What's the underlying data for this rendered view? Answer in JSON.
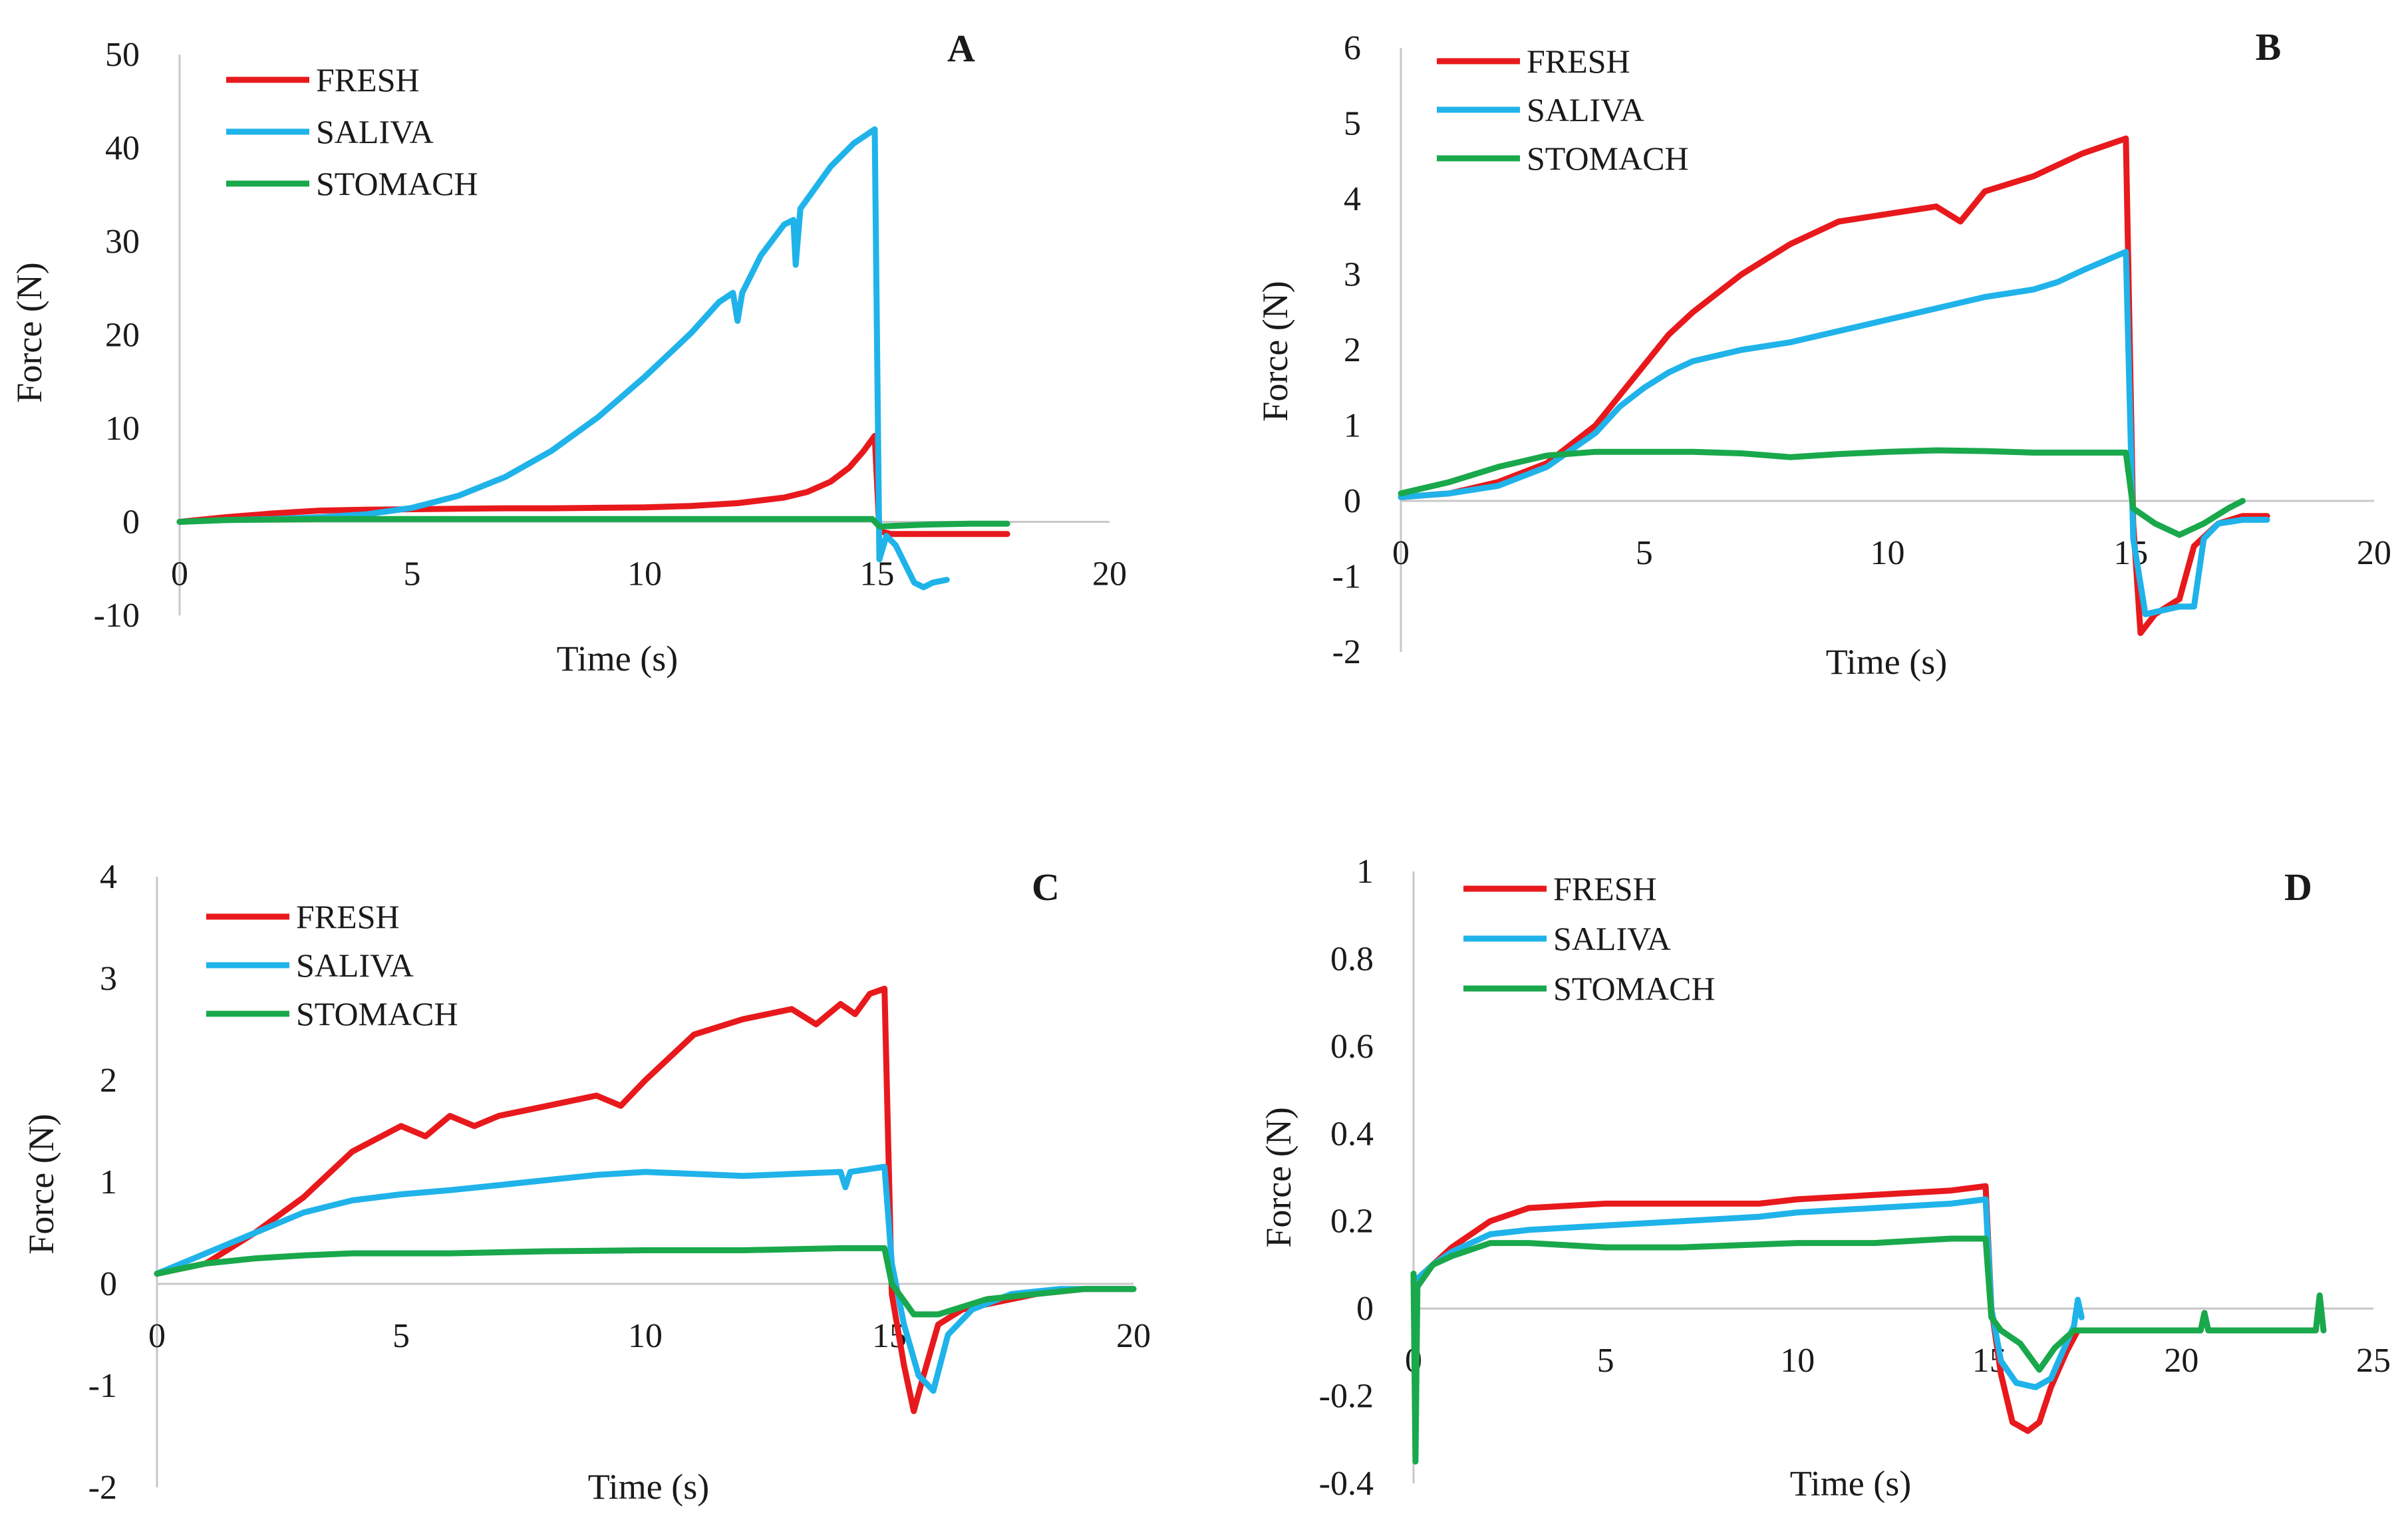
{
  "figure": {
    "background": "#ffffff"
  },
  "chart_data": [
    {
      "id": "A",
      "type": "line",
      "title": "A",
      "xlabel": "Time (s)",
      "ylabel": "Force (N)",
      "xlim": [
        0,
        20
      ],
      "ylim": [
        -10,
        50
      ],
      "xticks": [
        0,
        5,
        10,
        15,
        20
      ],
      "yticks": [
        -10,
        0,
        10,
        20,
        30,
        40,
        50
      ],
      "xtick_labels": [
        "0",
        "5",
        "10",
        "15",
        "20"
      ],
      "ytick_labels": [
        "-10",
        "0",
        "10",
        "20",
        "30",
        "40",
        "50"
      ],
      "legend": "top-left",
      "series": [
        {
          "name": "FRESH",
          "color": "#e8191c",
          "x": [
            0,
            1,
            2,
            3,
            4,
            5,
            6,
            7,
            8,
            9,
            10,
            11,
            12,
            13,
            13.5,
            14,
            14.4,
            14.7,
            14.95,
            15.05,
            15.3,
            16,
            17,
            17.8
          ],
          "y": [
            0,
            0.5,
            0.9,
            1.2,
            1.3,
            1.35,
            1.4,
            1.45,
            1.45,
            1.5,
            1.55,
            1.7,
            2.0,
            2.6,
            3.2,
            4.3,
            5.8,
            7.5,
            9.2,
            -1,
            -1.3,
            -1.3,
            -1.3,
            -1.3
          ]
        },
        {
          "name": "SALIVA",
          "color": "#1fb3ea",
          "x": [
            0,
            1,
            2,
            3,
            4,
            5,
            6,
            7,
            8,
            9,
            10,
            11,
            11.6,
            11.9,
            12.0,
            12.1,
            12.5,
            13.0,
            13.2,
            13.25,
            13.35,
            14,
            14.5,
            14.95,
            15.05,
            15.2,
            15.4,
            15.6,
            15.8,
            16.0,
            16.2,
            16.5
          ],
          "y": [
            0,
            0.2,
            0.3,
            0.5,
            0.8,
            1.5,
            2.8,
            4.8,
            7.6,
            11.2,
            15.5,
            20.2,
            23.5,
            24.5,
            21.5,
            24.5,
            28.5,
            31.8,
            32.3,
            27.5,
            33.5,
            38,
            40.5,
            42,
            -4,
            -1.5,
            -2.5,
            -4.5,
            -6.5,
            -7.0,
            -6.5,
            -6.2
          ]
        },
        {
          "name": "STOMACH",
          "color": "#19a84b",
          "x": [
            0,
            1,
            3,
            5,
            7,
            10,
            12,
            14.9,
            15.05,
            16,
            17,
            17.8
          ],
          "y": [
            0,
            0.2,
            0.3,
            0.3,
            0.3,
            0.3,
            0.3,
            0.3,
            -0.5,
            -0.3,
            -0.2,
            -0.2
          ]
        }
      ]
    },
    {
      "id": "B",
      "type": "line",
      "title": "B",
      "xlabel": "Time (s)",
      "ylabel": "Force (N)",
      "xlim": [
        0,
        20
      ],
      "ylim": [
        -2,
        6
      ],
      "xticks": [
        0,
        5,
        10,
        15,
        20
      ],
      "yticks": [
        -2,
        -1,
        0,
        1,
        2,
        3,
        4,
        5,
        6
      ],
      "xtick_labels": [
        "0",
        "5",
        "10",
        "15",
        "20"
      ],
      "ytick_labels": [
        "-2",
        "-1",
        "0",
        "1",
        "2",
        "3",
        "4",
        "5",
        "6"
      ],
      "legend": "top-left",
      "series": [
        {
          "name": "FRESH",
          "color": "#e8191c",
          "x": [
            0,
            1,
            2,
            3,
            4,
            4.5,
            5,
            5.5,
            6,
            7,
            8,
            9,
            10,
            11,
            11.5,
            12,
            13,
            14,
            14.9,
            15.05,
            15.2,
            15.5,
            16,
            16.3,
            16.8,
            17.3,
            17.8
          ],
          "y": [
            0.05,
            0.1,
            0.25,
            0.5,
            1.0,
            1.4,
            1.8,
            2.2,
            2.5,
            3.0,
            3.4,
            3.7,
            3.8,
            3.9,
            3.7,
            4.1,
            4.3,
            4.6,
            4.8,
            -0.3,
            -1.75,
            -1.5,
            -1.3,
            -0.6,
            -0.3,
            -0.2,
            -0.2
          ]
        },
        {
          "name": "SALIVA",
          "color": "#1fb3ea",
          "x": [
            0,
            1,
            2,
            3,
            4,
            4.5,
            5,
            5.5,
            6,
            7,
            8,
            9,
            10,
            11,
            12,
            13,
            13.5,
            14,
            14.9,
            15.05,
            15.3,
            16,
            16.3,
            16.5,
            16.8,
            17.3,
            17.8
          ],
          "y": [
            0.05,
            0.1,
            0.2,
            0.45,
            0.9,
            1.25,
            1.5,
            1.7,
            1.85,
            2.0,
            2.1,
            2.25,
            2.4,
            2.55,
            2.7,
            2.8,
            2.9,
            3.05,
            3.3,
            -0.5,
            -1.5,
            -1.4,
            -1.4,
            -0.5,
            -0.3,
            -0.25,
            -0.25
          ]
        },
        {
          "name": "STOMACH",
          "color": "#19a84b",
          "x": [
            0,
            1,
            2,
            3,
            4,
            5,
            6,
            7,
            8,
            9,
            10,
            11,
            12,
            13,
            14,
            14.9,
            15.05,
            15.5,
            16,
            16.5,
            17,
            17.3
          ],
          "y": [
            0.1,
            0.25,
            0.45,
            0.6,
            0.65,
            0.65,
            0.65,
            0.63,
            0.58,
            0.62,
            0.65,
            0.67,
            0.66,
            0.64,
            0.64,
            0.64,
            -0.1,
            -0.3,
            -0.45,
            -0.3,
            -0.1,
            0
          ]
        }
      ]
    },
    {
      "id": "C",
      "type": "line",
      "title": "C",
      "xlabel": "Time (s)",
      "ylabel": "Force (N)",
      "xlim": [
        0,
        20
      ],
      "ylim": [
        -2,
        4
      ],
      "xticks": [
        0,
        5,
        10,
        15,
        20
      ],
      "yticks": [
        -2,
        -1,
        0,
        1,
        2,
        3,
        4
      ],
      "xtick_labels": [
        "0",
        "5",
        "10",
        "15",
        "20"
      ],
      "ytick_labels": [
        "-2",
        "-1",
        "0",
        "1",
        "2",
        "3",
        "4"
      ],
      "legend": "top-left",
      "series": [
        {
          "name": "FRESH",
          "color": "#e8191c",
          "x": [
            0,
            1,
            2,
            3,
            4,
            5,
            5.5,
            6,
            6.5,
            7,
            8,
            9,
            9.5,
            10,
            11,
            12,
            13,
            13.5,
            14,
            14.3,
            14.6,
            14.9,
            15.05,
            15.3,
            15.5,
            15.7,
            16,
            16.5,
            17,
            18,
            19,
            20
          ],
          "y": [
            0.1,
            0.2,
            0.5,
            0.85,
            1.3,
            1.55,
            1.45,
            1.65,
            1.55,
            1.65,
            1.75,
            1.85,
            1.75,
            2.0,
            2.45,
            2.6,
            2.7,
            2.55,
            2.75,
            2.65,
            2.85,
            2.9,
            -0.1,
            -0.8,
            -1.25,
            -0.9,
            -0.4,
            -0.25,
            -0.2,
            -0.1,
            -0.05,
            -0.05
          ]
        },
        {
          "name": "SALIVA",
          "color": "#1fb3ea",
          "x": [
            0,
            1,
            2,
            3,
            4,
            5,
            6,
            7,
            8,
            9,
            10,
            11,
            12,
            13,
            14,
            14.1,
            14.2,
            14.9,
            15.05,
            15.3,
            15.6,
            15.9,
            16.2,
            16.7,
            17.5,
            18.5,
            20
          ],
          "y": [
            0.1,
            0.3,
            0.5,
            0.7,
            0.82,
            0.88,
            0.92,
            0.97,
            1.02,
            1.07,
            1.1,
            1.08,
            1.06,
            1.08,
            1.1,
            0.95,
            1.1,
            1.15,
            0.2,
            -0.4,
            -0.9,
            -1.05,
            -0.5,
            -0.25,
            -0.1,
            -0.05,
            -0.05
          ]
        },
        {
          "name": "STOMACH",
          "color": "#19a84b",
          "x": [
            0,
            1,
            2,
            3,
            4,
            5,
            6,
            8,
            10,
            12,
            14,
            14.9,
            15.05,
            15.5,
            16,
            17,
            18,
            19,
            20
          ],
          "y": [
            0.1,
            0.2,
            0.25,
            0.28,
            0.3,
            0.3,
            0.3,
            0.32,
            0.33,
            0.33,
            0.35,
            0.35,
            0,
            -0.3,
            -0.3,
            -0.15,
            -0.1,
            -0.05,
            -0.05
          ]
        }
      ]
    },
    {
      "id": "D",
      "type": "line",
      "title": "D",
      "xlabel": "Time (s)",
      "ylabel": "Force (N)",
      "xlim": [
        0,
        25
      ],
      "ylim": [
        -0.4,
        1
      ],
      "xticks": [
        0,
        5,
        10,
        15,
        20,
        25
      ],
      "yticks": [
        -0.4,
        -0.2,
        0,
        0.2,
        0.4,
        0.6,
        0.8,
        1
      ],
      "xtick_labels": [
        "0",
        "5",
        "10",
        "15",
        "20",
        "25"
      ],
      "ytick_labels": [
        "-0.4",
        "-0.2",
        "0",
        "0.2",
        "0.4",
        "0.6",
        "0.8",
        "1"
      ],
      "legend": "top-left",
      "series": [
        {
          "name": "FRESH",
          "color": "#e8191c",
          "x": [
            0,
            0.5,
            1,
            2,
            3,
            5,
            7,
            9,
            10,
            12,
            14,
            14.9,
            15.05,
            15.3,
            15.6,
            16,
            16.3,
            16.6,
            17,
            17.3
          ],
          "y": [
            0.06,
            0.1,
            0.14,
            0.2,
            0.23,
            0.24,
            0.24,
            0.24,
            0.25,
            0.26,
            0.27,
            0.28,
            0.0,
            -0.15,
            -0.26,
            -0.28,
            -0.26,
            -0.18,
            -0.1,
            -0.05
          ]
        },
        {
          "name": "SALIVA",
          "color": "#1fb3ea",
          "x": [
            0,
            0.5,
            1,
            2,
            3,
            5,
            7,
            9,
            10,
            12,
            14,
            14.9,
            15.05,
            15.3,
            15.7,
            16.2,
            16.6,
            17,
            17.2,
            17.3,
            17.4
          ],
          "y": [
            0.06,
            0.1,
            0.13,
            0.17,
            0.18,
            0.19,
            0.2,
            0.21,
            0.22,
            0.23,
            0.24,
            0.25,
            0.0,
            -0.12,
            -0.17,
            -0.18,
            -0.16,
            -0.08,
            -0.04,
            0.02,
            -0.02
          ]
        },
        {
          "name": "STOMACH",
          "color": "#19a84b",
          "x": [
            0,
            0.05,
            0.1,
            0.5,
            1,
            2,
            3,
            5,
            7,
            10,
            12,
            14,
            14.9,
            15.05,
            15.3,
            15.8,
            16.3,
            16.7,
            17.2,
            18,
            19,
            20,
            20.5,
            20.6,
            20.7,
            21,
            22,
            23,
            23.5,
            23.6,
            23.7
          ],
          "y": [
            0.08,
            -0.35,
            0.05,
            0.1,
            0.12,
            0.15,
            0.15,
            0.14,
            0.14,
            0.15,
            0.15,
            0.16,
            0.16,
            -0.02,
            -0.05,
            -0.08,
            -0.14,
            -0.09,
            -0.05,
            -0.05,
            -0.05,
            -0.05,
            -0.05,
            -0.01,
            -0.05,
            -0.05,
            -0.05,
            -0.05,
            -0.05,
            0.03,
            -0.05
          ]
        }
      ]
    }
  ]
}
